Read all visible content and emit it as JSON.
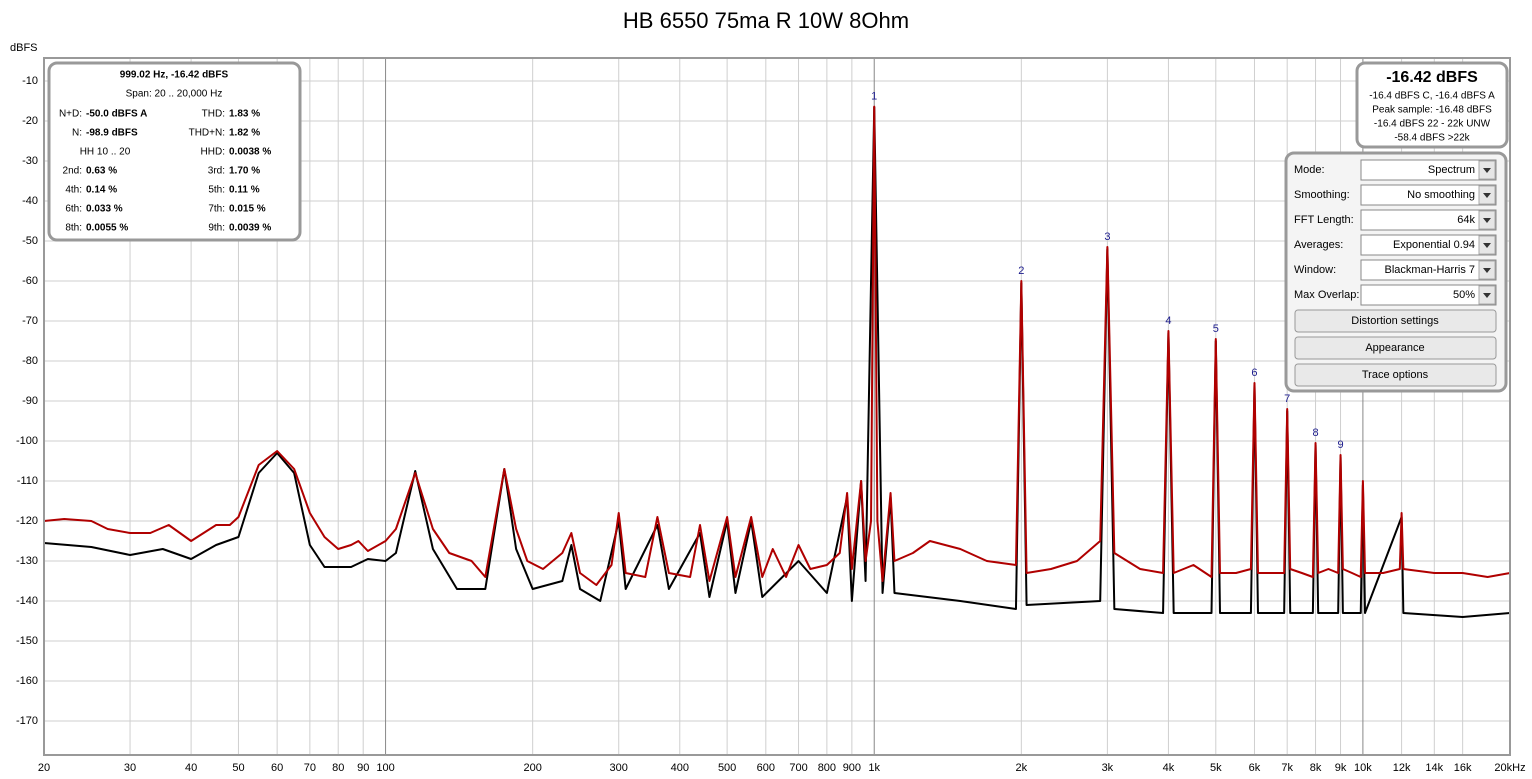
{
  "chart_data": {
    "type": "line",
    "title": "HB 6550 75ma R 10W 8Ohm",
    "y_label": "dBFS",
    "log_x": true,
    "grid": true,
    "xlim": [
      20,
      20000
    ],
    "ylim": [
      -178.5,
      -4.25
    ],
    "yticks": [
      -10,
      -20,
      -30,
      -40,
      -50,
      -60,
      -70,
      -80,
      -90,
      -100,
      -110,
      -120,
      -130,
      -140,
      -150,
      -160,
      -170
    ],
    "xticks": [
      20,
      30,
      40,
      50,
      60,
      70,
      80,
      90,
      100,
      200,
      300,
      400,
      500,
      600,
      700,
      800,
      900,
      {
        "value": 1000,
        "label": "1k"
      },
      {
        "value": 2000,
        "label": "2k"
      },
      {
        "value": 3000,
        "label": "3k"
      },
      {
        "value": 4000,
        "label": "4k"
      },
      {
        "value": 5000,
        "label": "5k"
      },
      {
        "value": 6000,
        "label": "6k"
      },
      {
        "value": 7000,
        "label": "7k"
      },
      {
        "value": 8000,
        "label": "8k"
      },
      {
        "value": 9000,
        "label": "9k"
      },
      {
        "value": 10000,
        "label": "10k"
      },
      {
        "value": 12000,
        "label": "12k"
      },
      {
        "value": 14000,
        "label": "14k"
      },
      {
        "value": 16000,
        "label": "16k"
      },
      {
        "value": 20000,
        "label": "20kHz"
      }
    ],
    "series": [
      {
        "color": "#b00000",
        "x": [
          20,
          22,
          25,
          27,
          30,
          33,
          36,
          40,
          45,
          48,
          50,
          55,
          60,
          65,
          70,
          75,
          80,
          85,
          88,
          92,
          100,
          105,
          115,
          125,
          135,
          150,
          160,
          175,
          185,
          195,
          210,
          230,
          240,
          250,
          270,
          290,
          300,
          310,
          340,
          360,
          380,
          420,
          440,
          460,
          500,
          520,
          560,
          590,
          620,
          660,
          700,
          740,
          800,
          850,
          880,
          900,
          940,
          960,
          985,
          1000,
          1015,
          1040,
          1080,
          1100,
          1200,
          1300,
          1500,
          1700,
          1950,
          2000,
          2050,
          2300,
          2600,
          2900,
          3000,
          3100,
          3500,
          3900,
          4000,
          4100,
          4500,
          4900,
          5000,
          5100,
          5500,
          5900,
          6000,
          6100,
          6500,
          6900,
          7000,
          7100,
          7500,
          7900,
          8000,
          8100,
          8500,
          8900,
          9000,
          9100,
          9500,
          9900,
          10000,
          10100,
          11000,
          11900,
          12000,
          12100,
          14000,
          16000,
          18000,
          20000
        ],
        "values": [
          -120,
          -119.5,
          -120,
          -122,
          -123,
          -123,
          -121,
          -125,
          -121,
          -121,
          -119,
          -106,
          -102.5,
          -107,
          -118,
          -124,
          -127,
          -126,
          -125,
          -127.5,
          -125,
          -122,
          -108,
          -122,
          -128,
          -130,
          -134,
          -107,
          -122,
          -130,
          -132,
          -128,
          -123,
          -133,
          -136,
          -131,
          -118,
          -133,
          -134,
          -119,
          -133,
          -134,
          -121,
          -135,
          -119,
          -134,
          -119,
          -134,
          -127,
          -134,
          -126,
          -132,
          -131,
          -128,
          -113,
          -132,
          -110,
          -130,
          -120,
          -16.42,
          -120,
          -135,
          -113,
          -130,
          -128,
          -125,
          -127,
          -130,
          -131,
          -60,
          -133,
          -132,
          -130,
          -125,
          -51.5,
          -128,
          -132,
          -133,
          -72.5,
          -133,
          -131,
          -134,
          -74.5,
          -133,
          -133,
          -132,
          -85.5,
          -133,
          -133,
          -133,
          -92,
          -132,
          -133,
          -134,
          -100.5,
          -133,
          -132,
          -133,
          -103.5,
          -132,
          -133,
          -134,
          -110,
          -133,
          -133,
          -132,
          -118,
          -132,
          -133,
          -133,
          -134,
          -133
        ]
      },
      {
        "color": "#000000",
        "x": [
          20,
          25,
          30,
          35,
          40,
          45,
          50,
          55,
          60,
          65,
          70,
          75,
          85,
          92,
          100,
          105,
          115,
          125,
          140,
          160,
          175,
          185,
          200,
          230,
          240,
          250,
          275,
          300,
          310,
          360,
          380,
          440,
          460,
          500,
          520,
          560,
          590,
          700,
          800,
          880,
          900,
          940,
          960,
          1000,
          1040,
          1080,
          1100,
          1500,
          1950,
          2000,
          2050,
          2900,
          3000,
          3100,
          3900,
          4000,
          4100,
          4900,
          5000,
          5100,
          5900,
          6000,
          6100,
          6900,
          7000,
          7100,
          7900,
          8000,
          8100,
          8900,
          9000,
          9100,
          9900,
          10000,
          10100,
          12000,
          12100,
          16000,
          20000
        ],
        "values": [
          -125.5,
          -126.5,
          -128.5,
          -127,
          -129.5,
          -126,
          -124,
          -108,
          -103,
          -108,
          -126,
          -131.5,
          -131.5,
          -129.5,
          -130,
          -128,
          -107.5,
          -127,
          -137,
          -137,
          -107,
          -127,
          -137,
          -135,
          -126,
          -137,
          -140,
          -120,
          -137,
          -121,
          -137,
          -123,
          -139,
          -120,
          -138,
          -120,
          -139,
          -130,
          -138,
          -114,
          -140,
          -110,
          -135,
          -16.5,
          -138,
          -114,
          -138,
          -140,
          -142,
          -60.5,
          -141,
          -140,
          -52,
          -142,
          -143,
          -73,
          -143,
          -143,
          -75,
          -143,
          -143,
          -86,
          -143,
          -143,
          -92.5,
          -143,
          -143,
          -101,
          -143,
          -143,
          -104,
          -143,
          -143,
          -111,
          -143,
          -119,
          -143,
          -144,
          -143
        ]
      }
    ],
    "annotations": [
      {
        "label": "1",
        "x": 1000,
        "y": -16.42
      },
      {
        "label": "2",
        "x": 2000,
        "y": -60
      },
      {
        "label": "3",
        "x": 3000,
        "y": -51.5
      },
      {
        "label": "4",
        "x": 4000,
        "y": -72.5
      },
      {
        "label": "5",
        "x": 5000,
        "y": -74.5
      },
      {
        "label": "6",
        "x": 6000,
        "y": -85.5
      },
      {
        "label": "7",
        "x": 7000,
        "y": -92
      },
      {
        "label": "8",
        "x": 8000,
        "y": -100.5
      },
      {
        "label": "9",
        "x": 9000,
        "y": -103.5
      }
    ]
  },
  "info_box": {
    "header": "999.02 Hz, -16.42 dBFS",
    "span": "Span: 20 .. 20,000 Hz",
    "rows": [
      [
        "N+D:",
        "-50.0 dBFS A",
        "THD:",
        "1.83 %"
      ],
      [
        "N:",
        "-98.9 dBFS",
        "THD+N:",
        "1.82 %"
      ],
      [
        "HH 10 .. 20",
        "HHD:",
        "0.0038 %"
      ],
      [
        "2nd:",
        "0.63 %",
        "3rd:",
        "1.70 %"
      ],
      [
        "4th:",
        "0.14 %",
        "5th:",
        "0.11 %"
      ],
      [
        "6th:",
        "0.033 %",
        "7th:",
        "0.015 %"
      ],
      [
        "8th:",
        "0.0055 %",
        "9th:",
        "0.0039 %"
      ]
    ]
  },
  "level_box": {
    "level": "-16.42 dBFS",
    "lines": [
      "-16.4 dBFS C, -16.4 dBFS A",
      "Peak sample: -16.48 dBFS",
      "-16.4 dBFS 22 - 22k UNW",
      "-58.4 dBFS >22k"
    ]
  },
  "controls": {
    "rows": [
      {
        "label": "Mode:",
        "value": "Spectrum"
      },
      {
        "label": "Smoothing:",
        "value": "No  smoothing"
      },
      {
        "label": "FFT Length:",
        "value": "64k"
      },
      {
        "label": "Averages:",
        "value": "Exponential 0.94"
      },
      {
        "label": "Window:",
        "value": "Blackman-Harris 7"
      },
      {
        "label": "Max Overlap:",
        "value": "50%"
      }
    ],
    "buttons": [
      "Distortion settings",
      "Appearance",
      "Trace options"
    ]
  }
}
